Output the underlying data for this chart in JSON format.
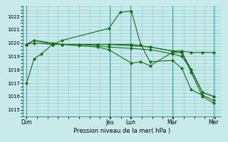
{
  "bg_color": "#c8eaea",
  "grid_color": "#88cccc",
  "line_color": "#1a6b1a",
  "xlabel": "Pression niveau de la mer( hPa )",
  "ylim": [
    1014.5,
    1022.8
  ],
  "yticks": [
    1015,
    1016,
    1017,
    1018,
    1019,
    1020,
    1021,
    1022
  ],
  "xtick_labels": [
    "Dim",
    "Jeu",
    "Lun",
    "Mar",
    "Mer"
  ],
  "xtick_positions": [
    0.0,
    0.444,
    0.556,
    0.778,
    1.0
  ],
  "series": [
    {
      "x": [
        0.0,
        0.04,
        0.08,
        0.14,
        0.19,
        0.44,
        0.5,
        0.56,
        0.61,
        0.66,
        0.78,
        0.83,
        0.88,
        0.94,
        1.0
      ],
      "y": [
        1017.0,
        1018.8,
        1019.2,
        1019.9,
        1020.2,
        1021.1,
        1022.3,
        1022.4,
        1019.9,
        1018.6,
        1018.7,
        1018.1,
        1016.5,
        1016.1,
        1015.7
      ]
    },
    {
      "x": [
        0.0,
        0.04,
        0.14,
        0.19,
        0.28,
        0.38,
        0.44,
        0.56,
        0.66,
        0.78,
        0.83,
        0.88,
        0.94,
        1.0
      ],
      "y": [
        1019.9,
        1020.2,
        1019.9,
        1019.9,
        1019.9,
        1019.9,
        1019.9,
        1019.9,
        1019.7,
        1019.4,
        1019.4,
        1019.3,
        1019.3,
        1019.3
      ]
    },
    {
      "x": [
        0.0,
        0.04,
        0.14,
        0.19,
        0.28,
        0.38,
        0.44,
        0.56,
        0.66,
        0.78,
        0.83,
        0.88,
        0.94,
        1.0
      ],
      "y": [
        1019.9,
        1020.0,
        1019.9,
        1019.9,
        1019.9,
        1019.8,
        1019.7,
        1019.6,
        1019.5,
        1019.2,
        1019.0,
        1018.0,
        1016.3,
        1016.0
      ]
    },
    {
      "x": [
        0.0,
        0.04,
        0.14,
        0.19,
        0.28,
        0.38,
        0.44,
        0.56,
        0.61,
        0.66,
        0.78,
        0.83,
        0.88,
        0.94,
        1.0
      ],
      "y": [
        1019.9,
        1020.2,
        1020.0,
        1019.9,
        1019.8,
        1019.7,
        1019.5,
        1018.5,
        1018.6,
        1018.3,
        1019.3,
        1019.3,
        1017.8,
        1016.0,
        1015.5
      ]
    },
    {
      "x": [
        0.28,
        0.38,
        0.44,
        0.56,
        0.66,
        0.78,
        0.83,
        0.88,
        0.94,
        1.0
      ],
      "y": [
        1019.9,
        1019.9,
        1019.9,
        1019.8,
        1019.7,
        1019.4,
        1019.3,
        1018.0,
        1016.3,
        1016.0
      ]
    }
  ],
  "vlines": [
    0.0,
    0.444,
    0.556,
    0.778,
    1.0
  ],
  "xlim": [
    -0.02,
    1.04
  ]
}
